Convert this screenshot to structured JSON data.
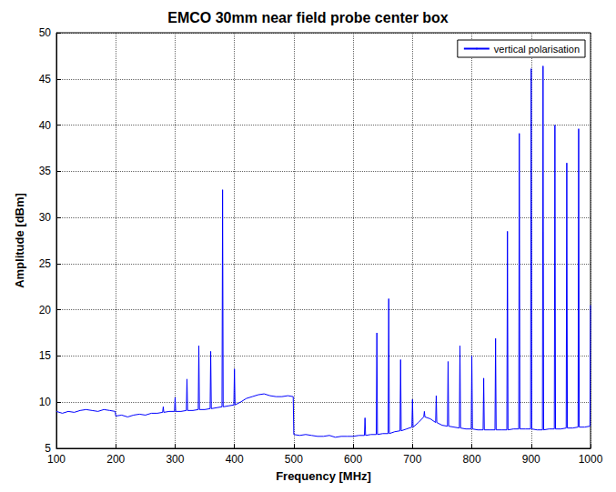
{
  "chart_data": {
    "type": "line",
    "title": "EMCO 30mm near field probe center box",
    "xlabel": "Frequency [MHz]",
    "ylabel": "Amplitude [dBm]",
    "x": [
      100,
      110,
      120,
      130,
      140,
      150,
      160,
      170,
      180,
      190,
      199,
      200,
      210,
      220,
      230,
      240,
      250,
      260,
      270,
      279,
      280,
      281,
      290,
      299,
      300,
      301,
      310,
      319,
      320,
      321,
      330,
      339,
      340,
      341,
      350,
      359,
      360,
      361,
      370,
      379,
      380,
      381,
      390,
      399,
      400,
      401,
      410,
      420,
      430,
      440,
      450,
      460,
      470,
      480,
      490,
      499,
      500,
      510,
      520,
      530,
      540,
      550,
      560,
      570,
      580,
      590,
      600,
      610,
      619,
      620,
      621,
      630,
      639,
      640,
      641,
      650,
      659,
      660,
      661,
      670,
      679,
      680,
      681,
      690,
      699,
      700,
      701,
      710,
      719,
      720,
      721,
      730,
      739,
      740,
      741,
      750,
      759,
      760,
      761,
      770,
      779,
      780,
      781,
      790,
      799,
      800,
      801,
      810,
      819,
      820,
      821,
      830,
      839,
      840,
      841,
      850,
      859,
      860,
      861,
      870,
      879,
      880,
      881,
      890,
      899,
      900,
      901,
      910,
      919,
      920,
      921,
      930,
      939,
      940,
      941,
      950,
      959,
      960,
      961,
      970,
      979,
      980,
      981,
      990,
      999,
      1000
    ],
    "series": [
      {
        "name": "vertical polarisation",
        "color": "#0000ff",
        "values": [
          9.0,
          8.8,
          9.0,
          8.9,
          9.1,
          9.2,
          9.1,
          9.0,
          9.2,
          9.1,
          9.0,
          8.5,
          8.6,
          8.4,
          8.6,
          8.7,
          8.6,
          8.8,
          8.8,
          8.9,
          9.5,
          8.9,
          9.0,
          9.0,
          10.5,
          9.0,
          9.0,
          9.1,
          12.5,
          9.1,
          9.1,
          9.2,
          16.1,
          9.2,
          9.2,
          9.3,
          15.5,
          9.3,
          9.4,
          9.5,
          33.0,
          9.5,
          9.6,
          9.7,
          13.6,
          9.7,
          10.0,
          10.4,
          10.6,
          10.8,
          10.9,
          10.7,
          10.6,
          10.6,
          10.7,
          10.6,
          6.5,
          6.4,
          6.5,
          6.4,
          6.3,
          6.3,
          6.4,
          6.2,
          6.3,
          6.3,
          6.3,
          6.4,
          6.4,
          8.3,
          6.4,
          6.5,
          6.5,
          17.5,
          6.5,
          6.6,
          6.6,
          21.2,
          6.6,
          6.8,
          6.9,
          14.6,
          6.9,
          7.1,
          7.3,
          10.3,
          7.3,
          7.8,
          8.4,
          9.0,
          8.4,
          8.2,
          7.8,
          10.7,
          7.8,
          7.5,
          7.4,
          14.4,
          7.4,
          7.3,
          7.2,
          16.1,
          7.2,
          7.1,
          7.1,
          15.0,
          7.1,
          7.0,
          7.0,
          12.6,
          7.0,
          7.0,
          7.0,
          16.9,
          7.0,
          7.0,
          7.0,
          28.5,
          7.0,
          7.1,
          7.1,
          39.1,
          7.1,
          7.1,
          7.1,
          46.1,
          7.1,
          7.0,
          7.0,
          46.4,
          7.0,
          7.1,
          7.1,
          40.0,
          7.1,
          7.1,
          7.2,
          35.9,
          7.2,
          7.2,
          7.3,
          39.6,
          7.3,
          7.3,
          7.4,
          20.5
        ]
      }
    ],
    "xlim": [
      100,
      1000
    ],
    "xticks": [
      100,
      200,
      300,
      400,
      500,
      600,
      700,
      800,
      900,
      1000
    ],
    "ylim": [
      5,
      50
    ],
    "yticks": [
      5,
      10,
      15,
      20,
      25,
      30,
      35,
      40,
      45,
      50
    ],
    "grid": true,
    "legend": "upper right"
  }
}
